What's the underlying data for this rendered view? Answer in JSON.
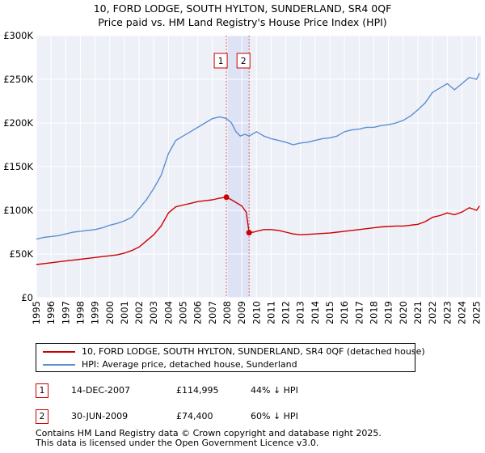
{
  "title": {
    "line1": "10, FORD LODGE, SOUTH HYLTON, SUNDERLAND, SR4 0QF",
    "line2": "Price paid vs. HM Land Registry's House Price Index (HPI)"
  },
  "chart_data": {
    "type": "line",
    "xlim": [
      1995.0,
      2025.3
    ],
    "ylim": [
      0,
      300000
    ],
    "y_ticks": [
      {
        "value": 0,
        "label": "£0"
      },
      {
        "value": 50000,
        "label": "£50K"
      },
      {
        "value": 100000,
        "label": "£100K"
      },
      {
        "value": 150000,
        "label": "£150K"
      },
      {
        "value": 200000,
        "label": "£200K"
      },
      {
        "value": 250000,
        "label": "£250K"
      },
      {
        "value": 300000,
        "label": "£300K"
      }
    ],
    "x_ticks": [
      "1995",
      "1996",
      "1997",
      "1998",
      "1999",
      "2000",
      "2001",
      "2002",
      "2003",
      "2004",
      "2005",
      "2006",
      "2007",
      "2008",
      "2009",
      "2010",
      "2011",
      "2012",
      "2013",
      "2014",
      "2015",
      "2016",
      "2017",
      "2018",
      "2019",
      "2020",
      "2021",
      "2022",
      "2023",
      "2024",
      "2025"
    ],
    "grid": true,
    "shaded_period": [
      2007.95,
      2009.5
    ],
    "series": [
      {
        "name": "HPI: Average price, detached house, Sunderland",
        "color": "#5b8fd0",
        "x": [
          1995.0,
          1995.5,
          1996.0,
          1996.5,
          1997.0,
          1997.5,
          1998.0,
          1998.5,
          1999.0,
          1999.5,
          2000.0,
          2000.5,
          2001.0,
          2001.5,
          2002.0,
          2002.5,
          2003.0,
          2003.5,
          2004.0,
          2004.5,
          2005.0,
          2005.5,
          2006.0,
          2006.5,
          2007.0,
          2007.5,
          2007.95,
          2008.3,
          2008.6,
          2008.9,
          2009.2,
          2009.5,
          2009.8,
          2010.0,
          2010.5,
          2011.0,
          2011.5,
          2012.0,
          2012.5,
          2013.0,
          2013.5,
          2014.0,
          2014.5,
          2015.0,
          2015.5,
          2016.0,
          2016.5,
          2017.0,
          2017.5,
          2018.0,
          2018.5,
          2019.0,
          2019.5,
          2020.0,
          2020.5,
          2021.0,
          2021.5,
          2022.0,
          2022.5,
          2023.0,
          2023.5,
          2024.0,
          2024.5,
          2025.0,
          2025.2
        ],
        "y": [
          67000,
          69000,
          70000,
          71000,
          73000,
          75000,
          76000,
          77000,
          78000,
          80000,
          83000,
          85000,
          88000,
          92000,
          102000,
          112000,
          125000,
          140000,
          165000,
          180000,
          185000,
          190000,
          195000,
          200000,
          205000,
          207000,
          205000,
          200000,
          190000,
          185000,
          187000,
          185000,
          188000,
          190000,
          185000,
          182000,
          180000,
          178000,
          175000,
          177000,
          178000,
          180000,
          182000,
          183000,
          185000,
          190000,
          192000,
          193000,
          195000,
          195000,
          197000,
          198000,
          200000,
          203000,
          208000,
          215000,
          223000,
          235000,
          240000,
          245000,
          238000,
          245000,
          252000,
          250000,
          257000
        ]
      },
      {
        "name": "10, FORD LODGE, SOUTH HYLTON, SUNDERLAND, SR4 0QF (detached house)",
        "color": "#cc0000",
        "x": [
          1995.0,
          1995.5,
          1996.0,
          1996.5,
          1997.0,
          1997.5,
          1998.0,
          1998.5,
          1999.0,
          1999.5,
          2000.0,
          2000.5,
          2001.0,
          2001.5,
          2002.0,
          2002.5,
          2003.0,
          2003.5,
          2004.0,
          2004.5,
          2005.0,
          2005.5,
          2006.0,
          2006.5,
          2007.0,
          2007.5,
          2007.95,
          2008.3,
          2008.7,
          2009.0,
          2009.3,
          2009.5,
          2009.8,
          2010.0,
          2010.5,
          2011.0,
          2011.5,
          2012.0,
          2012.5,
          2013.0,
          2013.5,
          2014.0,
          2014.5,
          2015.0,
          2015.5,
          2016.0,
          2016.5,
          2017.0,
          2017.5,
          2018.0,
          2018.5,
          2019.0,
          2019.5,
          2020.0,
          2020.5,
          2021.0,
          2021.5,
          2022.0,
          2022.5,
          2023.0,
          2023.5,
          2024.0,
          2024.5,
          2025.0,
          2025.2
        ],
        "y": [
          38000,
          39000,
          40000,
          41000,
          42000,
          43000,
          44000,
          45000,
          46000,
          47000,
          48000,
          49000,
          51000,
          54000,
          58000,
          65000,
          72000,
          82000,
          97000,
          104000,
          106000,
          108000,
          110000,
          111000,
          112000,
          114000,
          114995,
          112000,
          108000,
          105000,
          98000,
          74400,
          75000,
          76000,
          78000,
          78000,
          77000,
          75000,
          73000,
          72000,
          72500,
          73000,
          73500,
          74000,
          75000,
          76000,
          77000,
          78000,
          79000,
          80000,
          81000,
          81500,
          82000,
          82000,
          83000,
          84000,
          87000,
          92000,
          94000,
          97000,
          95000,
          98000,
          103000,
          100000,
          105000
        ]
      }
    ],
    "sales": [
      {
        "num": "1",
        "date": "14-DEC-2007",
        "x": 2007.95,
        "price": "£114,995",
        "value": 114995,
        "hpi": "44% ↓ HPI"
      },
      {
        "num": "2",
        "date": "30-JUN-2009",
        "x": 2009.5,
        "price": "£74,400",
        "value": 74400,
        "hpi": "60% ↓ HPI"
      }
    ]
  },
  "legend": {
    "property": "10, FORD LODGE, SOUTH HYLTON, SUNDERLAND, SR4 0QF (detached house)",
    "hpi": "HPI: Average price, detached house, Sunderland"
  },
  "footer": {
    "line1": "Contains HM Land Registry data © Crown copyright and database right 2025.",
    "line2": "This data is licensed under the Open Government Licence v3.0."
  }
}
